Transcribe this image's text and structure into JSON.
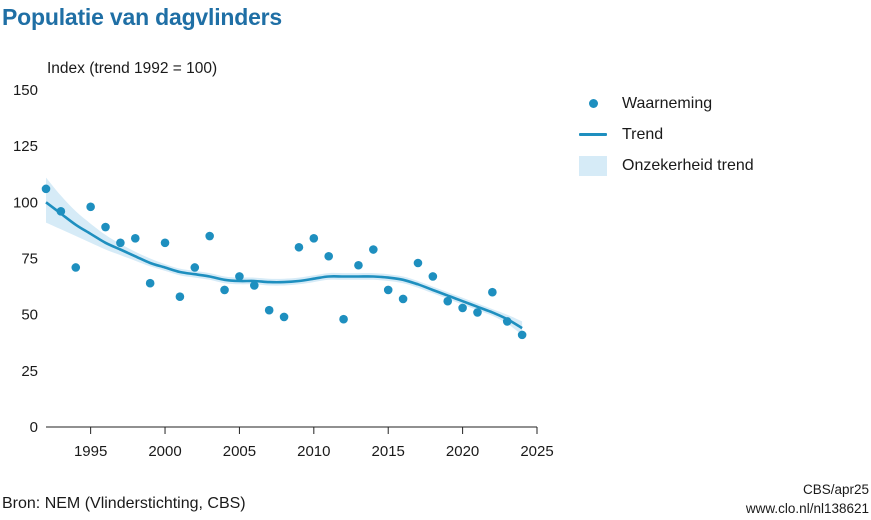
{
  "title": "Populatie van dagvlinders",
  "source": "Bron: NEM (Vlinderstichting, CBS)",
  "credit_line1": "CBS/apr25",
  "credit_line2": "www.clo.nl/nl138621",
  "legend": {
    "observation": "Waarneming",
    "trend": "Trend",
    "uncertainty": "Onzekerheid trend"
  },
  "colors": {
    "title": "#1f6fa5",
    "series": "#1e8fbf",
    "band": "#d6ebf7",
    "axis": "#222222"
  },
  "chart_data": {
    "type": "scatter",
    "title": "Populatie van dagvlinders",
    "ylabel": "Index (trend 1992 = 100)",
    "xlabel": "",
    "xlim": [
      1992,
      2025
    ],
    "ylim": [
      0,
      150
    ],
    "xticks": [
      "1995",
      "2000",
      "2005",
      "2010",
      "2015",
      "2020",
      "2025"
    ],
    "yticks": [
      "0",
      "25",
      "50",
      "75",
      "100",
      "125",
      "150"
    ],
    "grid": false,
    "legend_position": "right",
    "observations": {
      "name": "Waarneming",
      "x": [
        1992,
        1993,
        1994,
        1995,
        1996,
        1997,
        1998,
        1999,
        2000,
        2001,
        2002,
        2003,
        2004,
        2005,
        2006,
        2007,
        2008,
        2009,
        2010,
        2011,
        2012,
        2013,
        2014,
        2015,
        2016,
        2017,
        2018,
        2019,
        2020,
        2021,
        2022,
        2023,
        2024
      ],
      "y": [
        106,
        96,
        71,
        98,
        89,
        82,
        84,
        64,
        82,
        58,
        71,
        85,
        61,
        67,
        63,
        52,
        49,
        80,
        84,
        76,
        48,
        72,
        79,
        61,
        57,
        73,
        67,
        56,
        53,
        51,
        60,
        47,
        41
      ]
    },
    "trend": {
      "name": "Trend",
      "x": [
        1992,
        1993,
        1994,
        1995,
        1996,
        1997,
        1998,
        1999,
        2000,
        2001,
        2002,
        2003,
        2004,
        2005,
        2006,
        2007,
        2008,
        2009,
        2010,
        2011,
        2012,
        2013,
        2014,
        2015,
        2016,
        2017,
        2018,
        2019,
        2020,
        2021,
        2022,
        2023,
        2024
      ],
      "y": [
        100,
        95,
        90,
        86,
        82,
        79,
        76,
        73,
        71,
        69,
        68,
        67,
        65.5,
        65,
        65,
        64.5,
        64.5,
        65,
        66,
        67,
        67,
        67,
        67,
        66.5,
        65.5,
        63.5,
        61,
        58.5,
        56,
        53.5,
        51,
        48,
        44
      ]
    },
    "uncertainty": {
      "name": "Onzekerheid trend",
      "lower": [
        91,
        88,
        85,
        82,
        79,
        76.5,
        74,
        71.5,
        69.5,
        67.5,
        66.5,
        65.5,
        64,
        63.5,
        63.5,
        63,
        63,
        63.5,
        64.5,
        65.5,
        65.5,
        65.5,
        65.5,
        65,
        64,
        62,
        59.5,
        57,
        54.5,
        52,
        49.5,
        46,
        41
      ],
      "upper": [
        111,
        103,
        96,
        90.5,
        85.5,
        81.5,
        78,
        75,
        72.5,
        70.5,
        69.5,
        68.5,
        67,
        66.5,
        66.5,
        66,
        66,
        66.5,
        67.5,
        68.5,
        68.5,
        68.5,
        68.5,
        68,
        67,
        65,
        62.5,
        60,
        57.5,
        55,
        52.5,
        50,
        47
      ]
    }
  }
}
